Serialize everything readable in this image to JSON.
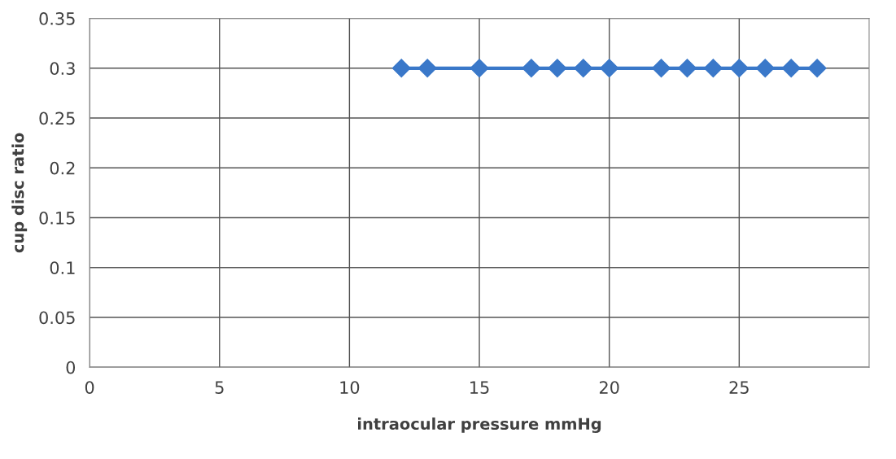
{
  "chart_data": {
    "type": "line",
    "xlabel": "intraocular pressure mmHg",
    "ylabel": "cup disc ratio",
    "x": [
      12,
      13,
      15,
      17,
      18,
      19,
      20,
      22,
      23,
      24,
      25,
      26,
      27,
      28
    ],
    "series": [
      {
        "color": "#3a78c9",
        "values": [
          0.3,
          0.3,
          0.3,
          0.3,
          0.3,
          0.3,
          0.3,
          0.3,
          0.3,
          0.3,
          0.3,
          0.3,
          0.3,
          0.3
        ]
      }
    ],
    "xlim": [
      0,
      30
    ],
    "xticks": [
      0,
      5,
      10,
      15,
      20,
      25
    ],
    "ylim": [
      0,
      0.35
    ],
    "yticks": [
      0,
      0.05,
      0.1,
      0.15,
      0.2,
      0.25,
      0.3,
      0.35
    ],
    "grid": true,
    "marker": "diamond",
    "line_style": "solid"
  }
}
